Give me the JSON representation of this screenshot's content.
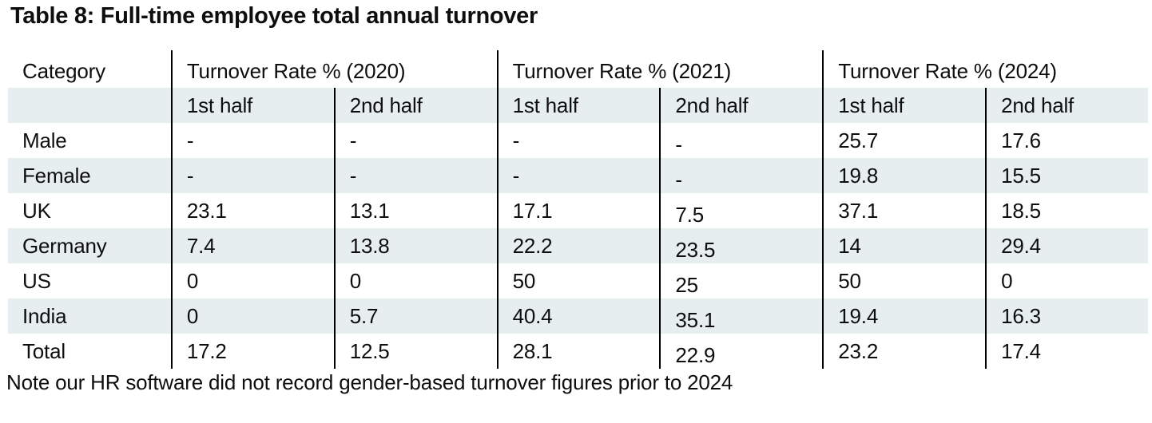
{
  "page": {
    "title": "Table 8: Full-time employee total annual turnover",
    "note": "Note our HR software did not record gender-based turnover figures prior to 2024"
  },
  "table": {
    "columns": {
      "category": "Category",
      "groups": [
        {
          "label": "Turnover Rate % (2020)"
        },
        {
          "label": "Turnover Rate % (2021)"
        },
        {
          "label": "Turnover Rate % (2024)"
        }
      ],
      "subheaders": [
        "1st half",
        "2nd half",
        "1st half",
        "2nd half",
        "1st half",
        "2nd half"
      ]
    },
    "rows": [
      {
        "category": "Male",
        "values": [
          "-",
          "-",
          "-",
          "-",
          "25.7",
          "17.6"
        ]
      },
      {
        "category": "Female",
        "values": [
          "-",
          "-",
          "-",
          "-",
          "19.8",
          "15.5"
        ]
      },
      {
        "category": "UK",
        "values": [
          "23.1",
          "13.1",
          "17.1",
          "7.5",
          "37.1",
          "18.5"
        ]
      },
      {
        "category": "Germany",
        "values": [
          "7.4",
          "13.8",
          "22.2",
          "23.5",
          "14",
          "29.4"
        ]
      },
      {
        "category": "US",
        "values": [
          "0",
          "0",
          "50",
          "25",
          "50",
          "0"
        ]
      },
      {
        "category": "India",
        "values": [
          "0",
          "5.7",
          "40.4",
          "35.1",
          "19.4",
          "16.3"
        ]
      },
      {
        "category": "Total",
        "values": [
          "17.2",
          "12.5",
          "28.1",
          "22.9",
          "23.2",
          "17.4"
        ]
      }
    ]
  },
  "colors": {
    "stripe_row": "#e7eef0",
    "divider": "#000000",
    "text": "#0e0e0e",
    "background": "#ffffff"
  }
}
